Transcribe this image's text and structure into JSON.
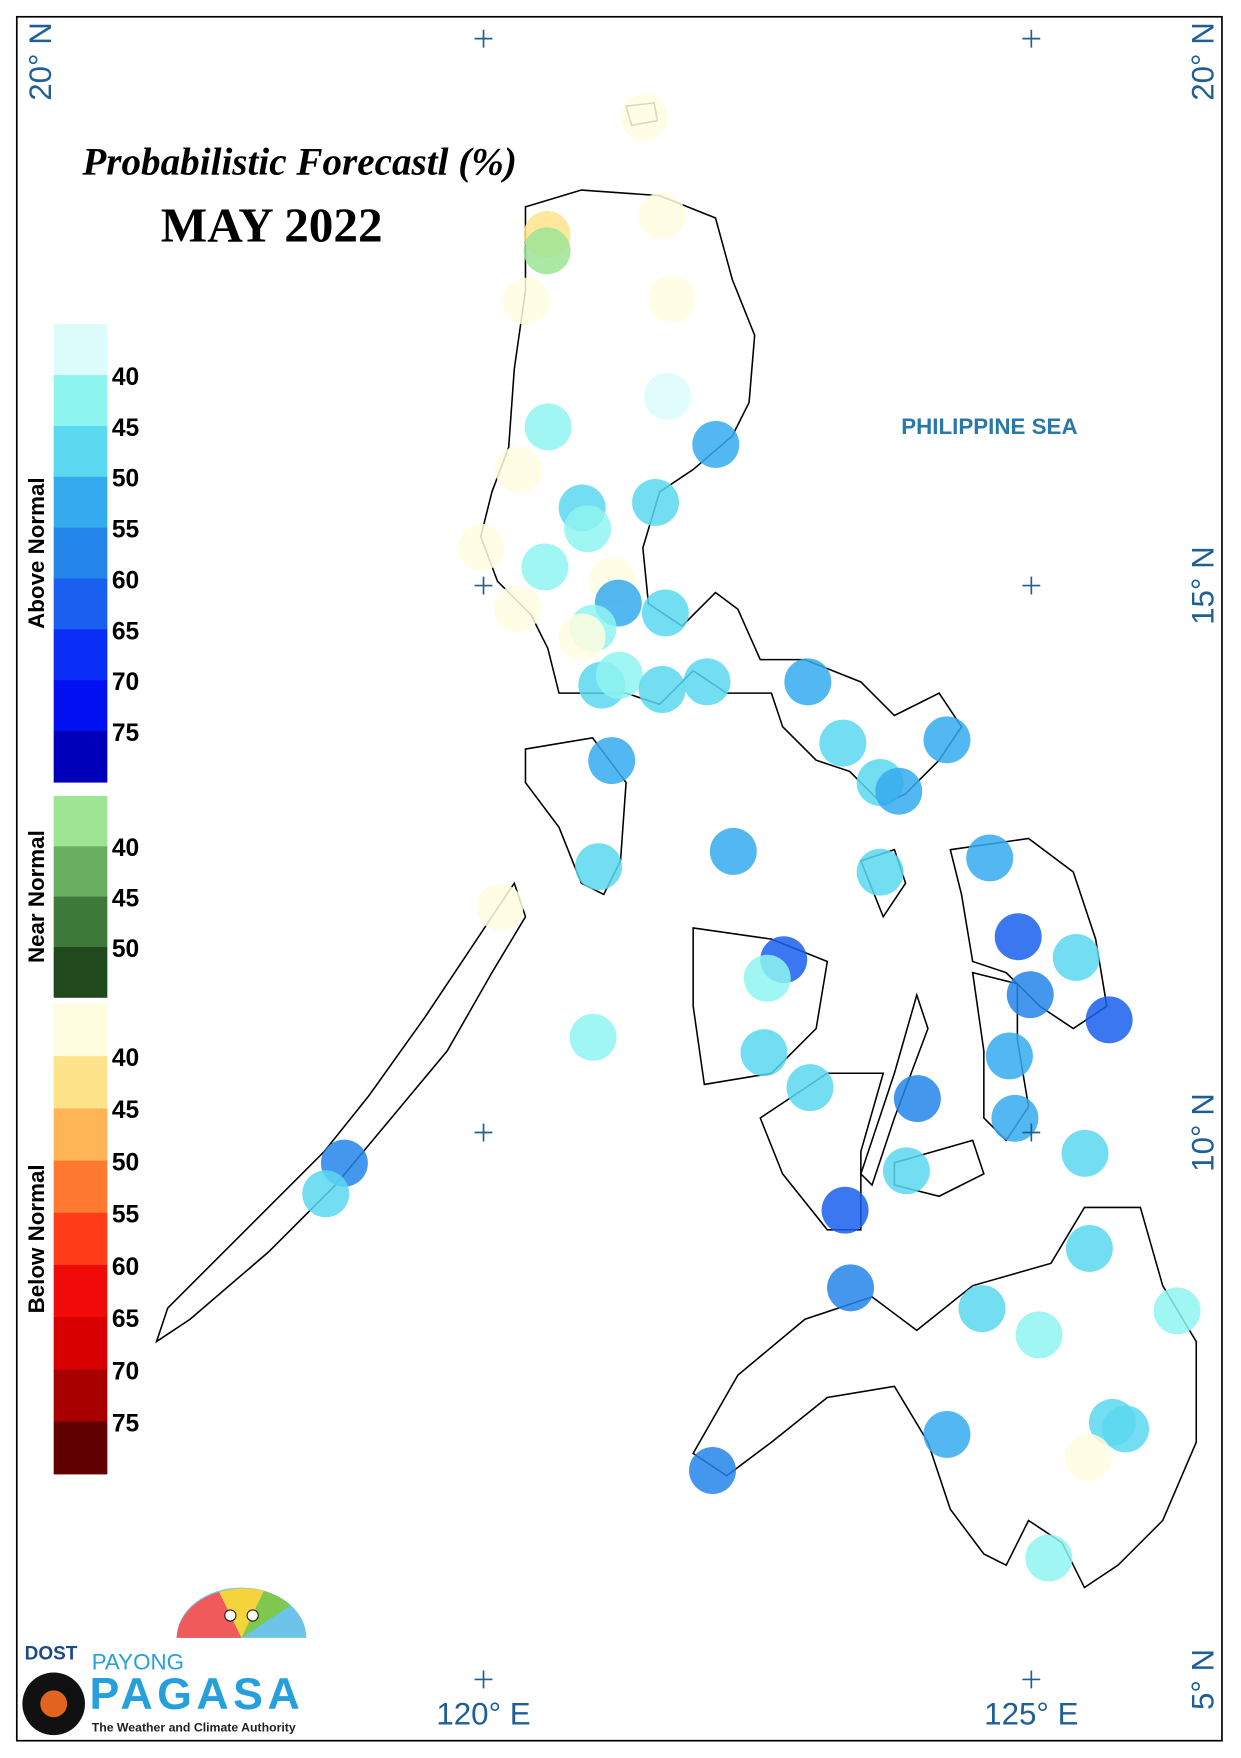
{
  "map": {
    "title": "Probabilistic Forecastl (%)",
    "subtitle": "MAY 2022",
    "sea_label": "PHILIPPINE SEA",
    "xlim": [
      115.74,
      126.74
    ],
    "ylim": [
      4.44,
      20.2
    ],
    "xticks": [
      {
        "value": 120,
        "label": "120° E"
      },
      {
        "value": 125,
        "label": "125° E"
      }
    ],
    "yticks": [
      {
        "value": 5,
        "label": "5° N"
      },
      {
        "value": 10,
        "label": "10° N"
      },
      {
        "value": 15,
        "label": "15° N"
      },
      {
        "value": 20,
        "label": "20° N"
      }
    ],
    "legend": [
      {
        "title": "Above Normal",
        "ticks": [
          40,
          45,
          50,
          55,
          60,
          65,
          70,
          75
        ],
        "colors": [
          "#dcfcfc",
          "#8ff5f0",
          "#5ad8f0",
          "#35aaee",
          "#2385ea",
          "#1a5ff0",
          "#0a2ef5",
          "#0010f0",
          "#0000bb"
        ]
      },
      {
        "title": "Near Normal",
        "ticks": [
          40,
          45,
          50
        ],
        "colors": [
          "#9ee495",
          "#6aae62",
          "#3d7a3a",
          "#204a1e"
        ]
      },
      {
        "title": "Below Normal",
        "ticks": [
          40,
          45,
          50,
          55,
          60,
          65,
          70,
          75
        ],
        "colors": [
          "#fffde0",
          "#ffe38a",
          "#ffb555",
          "#ff7a30",
          "#ff3c18",
          "#f00a0a",
          "#d80000",
          "#a80000",
          "#600000"
        ]
      }
    ],
    "stations": {
      "lon": [
        121.47,
        121.63,
        120.58,
        120.58,
        120.39,
        121.72,
        121.68,
        120.59,
        122.12,
        120.32,
        121.57,
        120.9,
        120.95,
        119.98,
        120.56,
        121.18,
        121.23,
        121.66,
        120.31,
        121.0,
        120.9,
        121.08,
        121.24,
        121.63,
        122.04,
        122.96,
        124.23,
        123.28,
        121.17,
        123.62,
        123.79,
        122.28,
        121.05,
        124.62,
        123.62,
        120.15,
        124.88,
        125.41,
        122.74,
        122.59,
        124.99,
        125.71,
        121.0,
        122.56,
        124.8,
        122.98,
        123.96,
        124.85,
        118.73,
        125.49,
        123.86,
        118.56,
        123.3,
        125.53,
        123.35,
        124.55,
        126.33,
        125.07,
        125.74,
        125.86,
        124.23,
        125.52,
        122.09,
        125.16
      ],
      "lat": [
        19.28,
        18.38,
        18.21,
        18.06,
        17.6,
        17.62,
        16.73,
        16.45,
        16.29,
        16.06,
        15.76,
        15.71,
        15.52,
        15.35,
        15.17,
        15.04,
        14.84,
        14.75,
        14.79,
        14.61,
        14.53,
        14.09,
        14.18,
        14.05,
        14.12,
        14.12,
        13.59,
        13.56,
        13.4,
        13.2,
        13.12,
        12.57,
        12.43,
        12.51,
        12.38,
        12.06,
        11.79,
        11.6,
        11.58,
        11.41,
        11.26,
        11.03,
        10.87,
        10.73,
        10.7,
        10.41,
        10.31,
        10.13,
        9.72,
        9.81,
        9.65,
        9.44,
        9.29,
        8.94,
        8.58,
        8.39,
        8.37,
        8.15,
        7.35,
        7.29,
        7.24,
        7.03,
        6.91,
        6.11
      ],
      "legend_class": [
        2,
        2,
        2,
        1,
        2,
        2,
        0,
        0,
        0,
        2,
        0,
        0,
        0,
        2,
        0,
        2,
        0,
        0,
        2,
        0,
        2,
        0,
        0,
        0,
        0,
        0,
        0,
        0,
        0,
        0,
        0,
        0,
        0,
        0,
        0,
        2,
        0,
        0,
        0,
        0,
        0,
        0,
        0,
        0,
        0,
        0,
        0,
        0,
        0,
        0,
        0,
        0,
        0,
        0,
        0,
        0,
        0,
        0,
        0,
        0,
        0,
        2,
        0,
        0
      ],
      "probability": [
        35,
        35,
        42,
        38,
        35,
        35,
        35,
        42,
        52,
        35,
        47,
        47,
        42,
        35,
        42,
        35,
        52,
        47,
        35,
        42,
        35,
        47,
        42,
        47,
        47,
        52,
        52,
        47,
        52,
        47,
        52,
        52,
        47,
        52,
        47,
        35,
        62,
        47,
        62,
        42,
        57,
        62,
        42,
        47,
        52,
        47,
        57,
        52,
        57,
        47,
        47,
        47,
        62,
        47,
        57,
        47,
        42,
        42,
        47,
        47,
        52,
        35,
        57,
        42
      ]
    },
    "logo": {
      "agency": "DOST",
      "line1": "PAYONG",
      "line2": "PAGASA",
      "tagline": "The Weather and Climate Authority"
    }
  }
}
